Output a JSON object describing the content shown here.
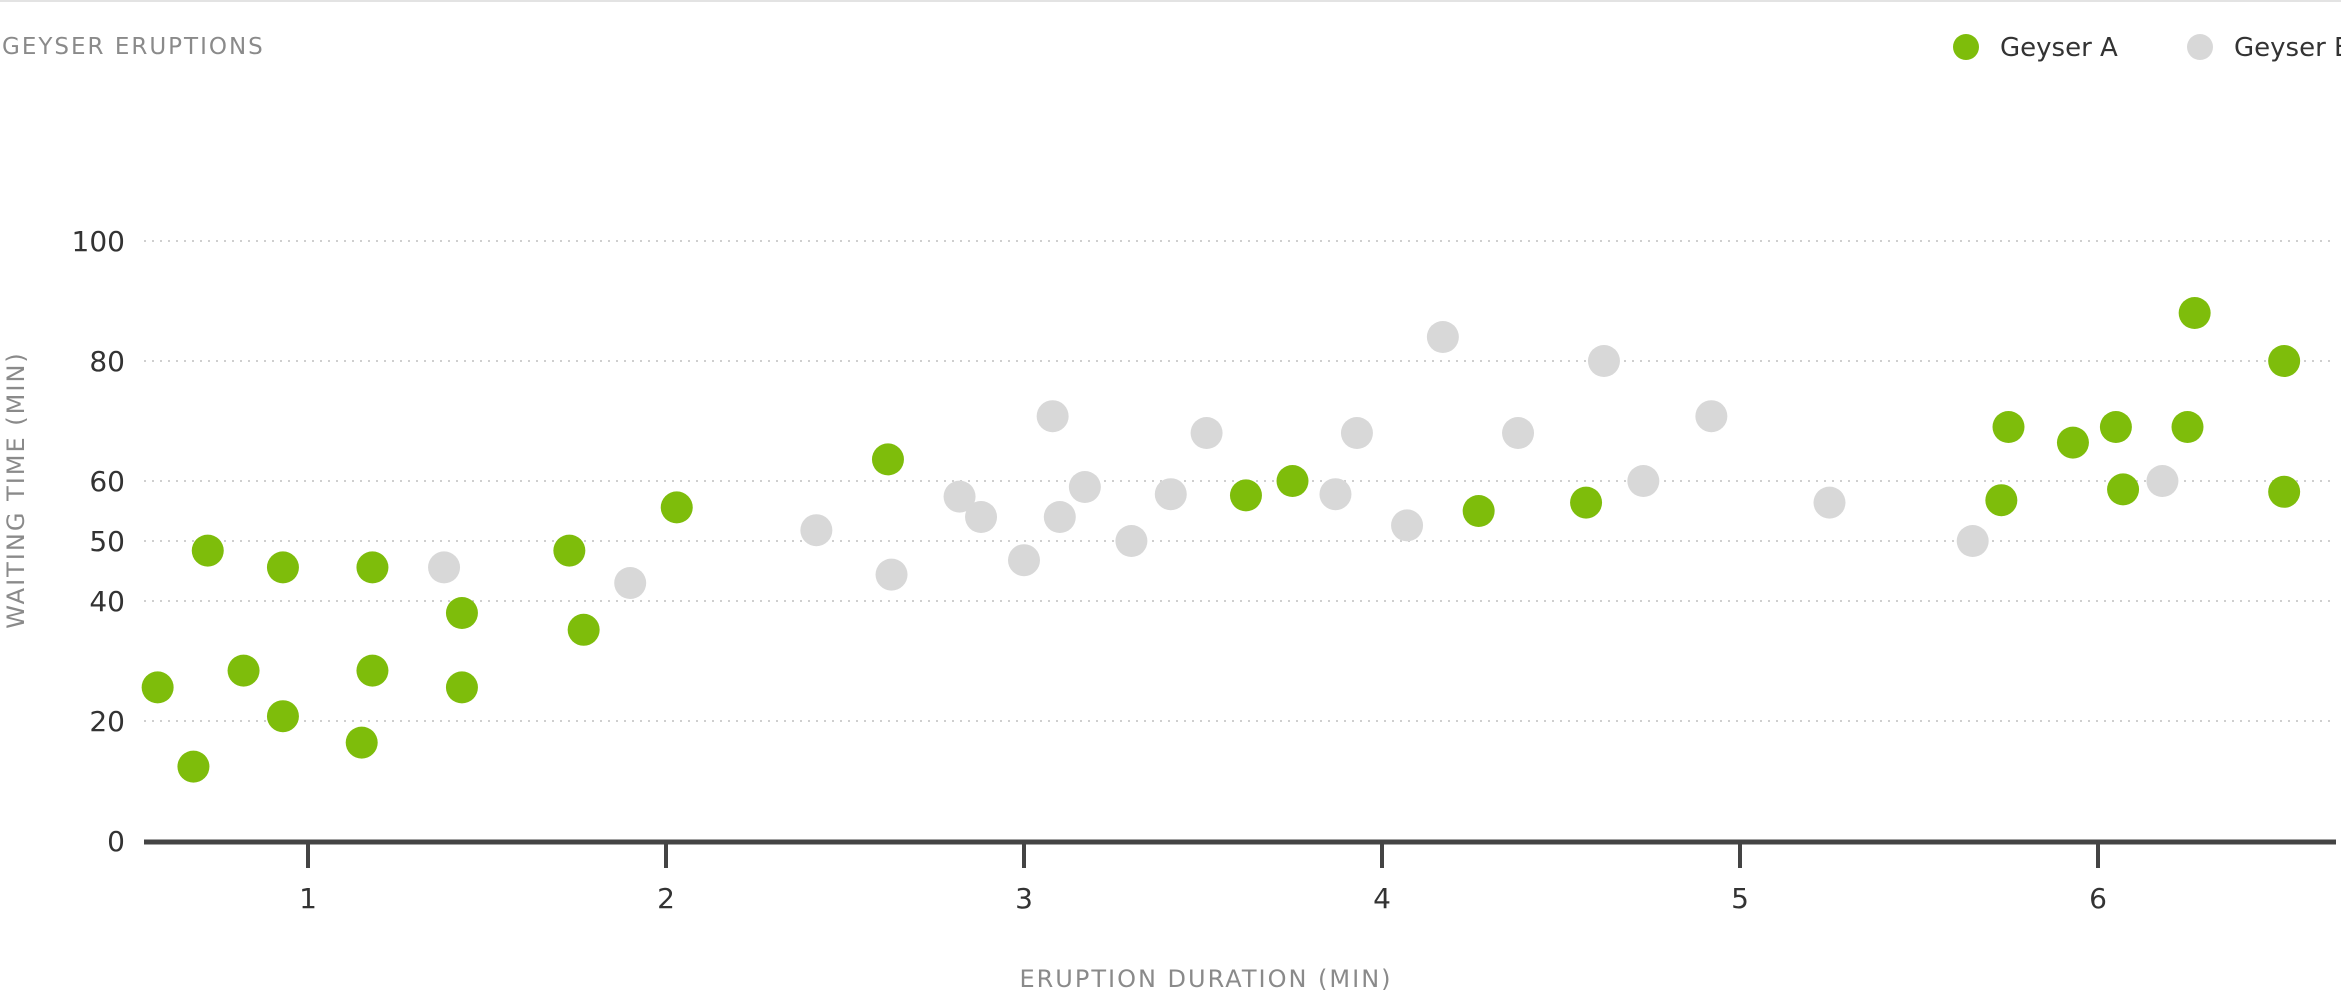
{
  "chart_data": {
    "type": "scatter",
    "title": "GEYSER ERUPTIONS",
    "xlabel": "ERUPTION DURATION (MIN)",
    "ylabel": "WAITING TIME (MIN)",
    "x_ticks": [
      "1",
      "2",
      "3",
      "4",
      "5",
      "6"
    ],
    "y_ticks": [
      "0",
      "20",
      "40",
      "50",
      "60",
      "80",
      "100"
    ],
    "legend_position": "top-right",
    "grid": true,
    "series": [
      {
        "name": "Geyser A",
        "color": "#7ebd0b",
        "points": [
          [
            0.58,
            25.6
          ],
          [
            0.68,
            12.4
          ],
          [
            0.72,
            48.4
          ],
          [
            0.82,
            28.4
          ],
          [
            0.93,
            45.6
          ],
          [
            0.93,
            20.8
          ],
          [
            1.15,
            16.4
          ],
          [
            1.18,
            45.6
          ],
          [
            1.18,
            28.4
          ],
          [
            1.43,
            38.0
          ],
          [
            1.43,
            25.6
          ],
          [
            1.73,
            48.4
          ],
          [
            1.77,
            35.2
          ],
          [
            2.03,
            55.6
          ],
          [
            2.62,
            63.6
          ],
          [
            3.62,
            57.6
          ],
          [
            3.75,
            60.0
          ],
          [
            4.27,
            55.0
          ],
          [
            4.57,
            56.4
          ],
          [
            5.73,
            56.8
          ],
          [
            5.75,
            69.0
          ],
          [
            5.93,
            66.4
          ],
          [
            6.05,
            69.0
          ],
          [
            6.07,
            58.6
          ],
          [
            6.25,
            69.0
          ],
          [
            6.27,
            88.0
          ],
          [
            6.52,
            80.0
          ],
          [
            6.52,
            58.2
          ]
        ]
      },
      {
        "name": "Geyser B",
        "color": "#d8d8d8",
        "points": [
          [
            1.38,
            45.6
          ],
          [
            1.9,
            43.0
          ],
          [
            2.42,
            51.8
          ],
          [
            2.63,
            44.4
          ],
          [
            2.82,
            57.4
          ],
          [
            2.88,
            54.0
          ],
          [
            3.0,
            46.8
          ],
          [
            3.08,
            70.8
          ],
          [
            3.1,
            54.0
          ],
          [
            3.17,
            59.0
          ],
          [
            3.3,
            50.0
          ],
          [
            3.41,
            57.8
          ],
          [
            3.51,
            68.0
          ],
          [
            3.87,
            57.8
          ],
          [
            3.93,
            68.0
          ],
          [
            4.07,
            52.6
          ],
          [
            4.17,
            84.0
          ],
          [
            4.38,
            68.0
          ],
          [
            4.62,
            80.0
          ],
          [
            4.73,
            60.0
          ],
          [
            4.92,
            70.8
          ],
          [
            5.25,
            56.4
          ],
          [
            5.65,
            50.0
          ],
          [
            6.18,
            60.0
          ]
        ]
      }
    ]
  }
}
